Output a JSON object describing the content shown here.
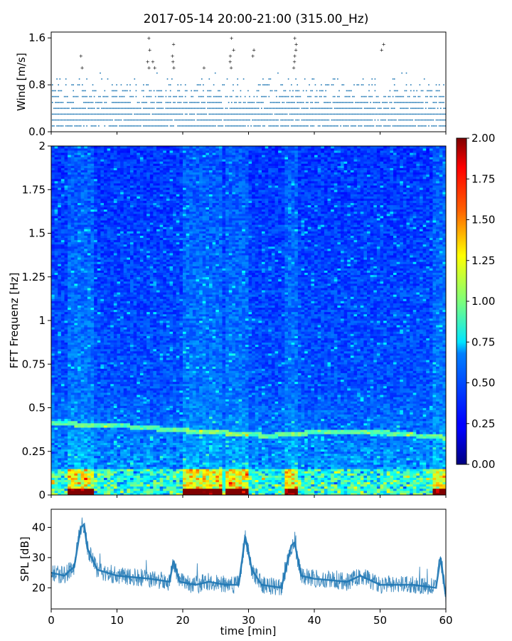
{
  "title": "2017-05-14 20:00-21:00 (315.00_Hz)",
  "colors": {
    "wind": "#1f77b4",
    "spl": "#1f77b4"
  },
  "chart_data": [
    {
      "panel": "wind",
      "type": "scatter",
      "title": "2017-05-14 20:00-21:00 (315.00_Hz)",
      "xlabel": "",
      "ylabel": "Wind [m/s]",
      "xlim": [
        0,
        60
      ],
      "ylim": [
        0,
        1.7
      ],
      "yticks": [
        "0.0",
        "0.8",
        "1.6"
      ],
      "series": [
        {
          "levels": [
            0.1,
            0.2,
            0.3,
            0.4,
            0.5,
            0.6,
            0.7,
            0.8,
            0.9,
            1.0
          ],
          "level_density": [
            0.85,
            0.95,
            0.95,
            0.9,
            0.8,
            0.6,
            0.4,
            0.25,
            0.12,
            0.05
          ],
          "peaks": [
            {
              "x": 4.5,
              "y": 1.3
            },
            {
              "x": 14.8,
              "y": 1.6
            },
            {
              "x": 18.5,
              "y": 1.5
            },
            {
              "x": 27.5,
              "y": 1.6
            },
            {
              "x": 30.8,
              "y": 1.4
            },
            {
              "x": 37.0,
              "y": 1.6
            },
            {
              "x": 50.3,
              "y": 1.6
            },
            {
              "x": 15.5,
              "y": 1.2
            },
            {
              "x": 23.0,
              "y": 1.2
            }
          ]
        }
      ]
    },
    {
      "panel": "spectrogram",
      "type": "heatmap",
      "xlabel": "",
      "ylabel": "FFT Frequenz [Hz]",
      "xlim": [
        0,
        60
      ],
      "ylim": [
        0,
        2
      ],
      "yticks": [
        "0",
        "0.25",
        "0.5",
        "0.75",
        "1",
        "1.25",
        "1.5",
        "1.75",
        "2"
      ],
      "colorbar": {
        "range": [
          0,
          2
        ],
        "ticks": [
          "0.00",
          "0.25",
          "0.50",
          "0.75",
          "1.00",
          "1.25",
          "1.50",
          "1.75",
          "2.00"
        ],
        "colormap": "jet"
      },
      "ridge": [
        [
          0,
          0.41
        ],
        [
          10,
          0.4
        ],
        [
          20,
          0.37
        ],
        [
          30,
          0.35
        ],
        [
          33,
          0.34
        ],
        [
          40,
          0.36
        ],
        [
          50,
          0.36
        ],
        [
          60,
          0.33
        ]
      ],
      "bright_columns": [
        3.5,
        5.5,
        21,
        23,
        25,
        27.5,
        29,
        36.5,
        59
      ]
    },
    {
      "panel": "spl",
      "type": "area",
      "xlabel": "time [min]",
      "ylabel": "SPL [dB]",
      "xlim": [
        0,
        60
      ],
      "ylim": [
        13,
        46
      ],
      "xticks": [
        "0",
        "10",
        "20",
        "30",
        "40",
        "50",
        "60"
      ],
      "yticks": [
        "20",
        "30",
        "40"
      ],
      "series": [
        {
          "x": [
            0,
            2,
            3.5,
            4.5,
            5,
            5.5,
            7,
            10,
            15,
            18,
            18.6,
            19.5,
            22,
            24,
            26.5,
            28.5,
            29.5,
            30.5,
            32,
            35,
            36.5,
            37,
            38,
            40,
            45,
            47,
            50,
            55,
            58.5,
            59.2,
            60
          ],
          "y": [
            25,
            24,
            27,
            40,
            41,
            33,
            26,
            24,
            23,
            22,
            29,
            22,
            21,
            22,
            21,
            21,
            37,
            26,
            21,
            20,
            34,
            35,
            24,
            23,
            22,
            24,
            21,
            21,
            20,
            30,
            17
          ]
        }
      ]
    }
  ]
}
